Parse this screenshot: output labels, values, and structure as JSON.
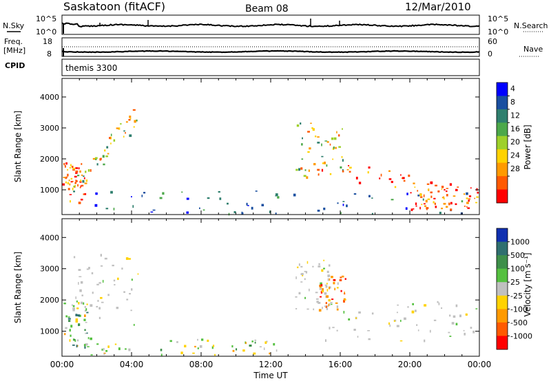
{
  "header": {
    "station": "Saskatoon (fitACF)",
    "beam": "Beam 08",
    "date": "12/Mar/2010"
  },
  "noise_panel": {
    "left_label": "N.Sky",
    "right_label": "N.Search",
    "tick_top": "10^5",
    "tick_bottom": "10^0",
    "right_tick_top": "10^5",
    "right_tick_bottom": "10^0"
  },
  "freq_panel": {
    "left_label_1": "Freq.",
    "left_label_2": "[MHz]",
    "right_label": "Nave",
    "left_tick_top": "18",
    "left_tick_bottom": "8",
    "right_tick_top": "60",
    "right_tick_bottom": "0"
  },
  "cpid_panel": {
    "label": "CPID",
    "value": "themis 3300"
  },
  "chart_data": [
    {
      "type": "heatmap",
      "parameter": "Power",
      "ylabel": "Slant Range [km]",
      "ylim": [
        200,
        4600
      ],
      "y_ticks": [
        "1000",
        "2000",
        "3000",
        "4000"
      ],
      "y_tick_values": [
        1000,
        2000,
        3000,
        4000
      ],
      "xlim_hours": [
        0,
        24
      ],
      "colorbar": {
        "label": "Power [dB]",
        "ticks": [
          "4",
          "8",
          "12",
          "16",
          "20",
          "24",
          "28"
        ],
        "colors": [
          "#0000ff",
          "#1a4fa0",
          "#2f7f6e",
          "#4ca84a",
          "#9ed02a",
          "#ffd200",
          "#ff9a00",
          "#ff5a00",
          "#ff0000"
        ]
      },
      "echo_regions": [
        {
          "t0": 0.0,
          "t1": 1.3,
          "r0": 600,
          "r1": 2000,
          "level": "high"
        },
        {
          "t0": 0.4,
          "t1": 4.3,
          "r0": 1000,
          "r1": 3400,
          "level": "medium",
          "trend": "rising"
        },
        {
          "t0": 1.5,
          "t1": 23.5,
          "r0": 250,
          "r1": 1000,
          "level": "low"
        },
        {
          "t0": 13.4,
          "t1": 16.2,
          "r0": 1400,
          "r1": 3300,
          "level": "medium"
        },
        {
          "t0": 14.5,
          "t1": 24.0,
          "r0": 800,
          "r1": 1800,
          "level": "high",
          "trend": "falling"
        },
        {
          "t0": 20.0,
          "t1": 24.0,
          "r0": 350,
          "r1": 900,
          "level": "high"
        }
      ]
    },
    {
      "type": "heatmap",
      "parameter": "Velocity",
      "ylabel": "Slant Range [km]",
      "ylim": [
        200,
        4600
      ],
      "y_ticks": [
        "1000",
        "2000",
        "3000",
        "4000"
      ],
      "y_tick_values": [
        1000,
        2000,
        3000,
        4000
      ],
      "xlabel": "Time UT",
      "x_ticks": [
        "00:00",
        "04:00",
        "08:00",
        "12:00",
        "16:00",
        "20:00",
        "00:00"
      ],
      "x_tick_hours": [
        0,
        4,
        8,
        12,
        16,
        20,
        24
      ],
      "colorbar": {
        "label": "Velocity [m s⁻¹]",
        "ticks": [
          "1000",
          "500",
          "100",
          "25",
          "-25",
          "-100",
          "-500",
          "-1000"
        ],
        "colors": [
          "#1030b0",
          "#2f6f6f",
          "#3e8f4a",
          "#55c040",
          "#c0c0c0",
          "#ffd200",
          "#ff9a00",
          "#ff5a00",
          "#ff0000"
        ]
      },
      "echo_regions": [
        {
          "t0": 0.0,
          "t1": 1.5,
          "r0": 500,
          "r1": 2000,
          "level": "mixed"
        },
        {
          "t0": 0.6,
          "t1": 4.4,
          "r0": 1200,
          "r1": 3500,
          "level": "ground"
        },
        {
          "t0": 1.5,
          "t1": 13.0,
          "r0": 250,
          "r1": 800,
          "level": "low"
        },
        {
          "t0": 13.4,
          "t1": 15.5,
          "r0": 1700,
          "r1": 3300,
          "level": "ground"
        },
        {
          "t0": 14.7,
          "t1": 16.3,
          "r0": 1700,
          "r1": 2800,
          "level": "negative"
        },
        {
          "t0": 15.0,
          "t1": 24.0,
          "r0": 700,
          "r1": 2000,
          "level": "ground"
        }
      ]
    }
  ]
}
